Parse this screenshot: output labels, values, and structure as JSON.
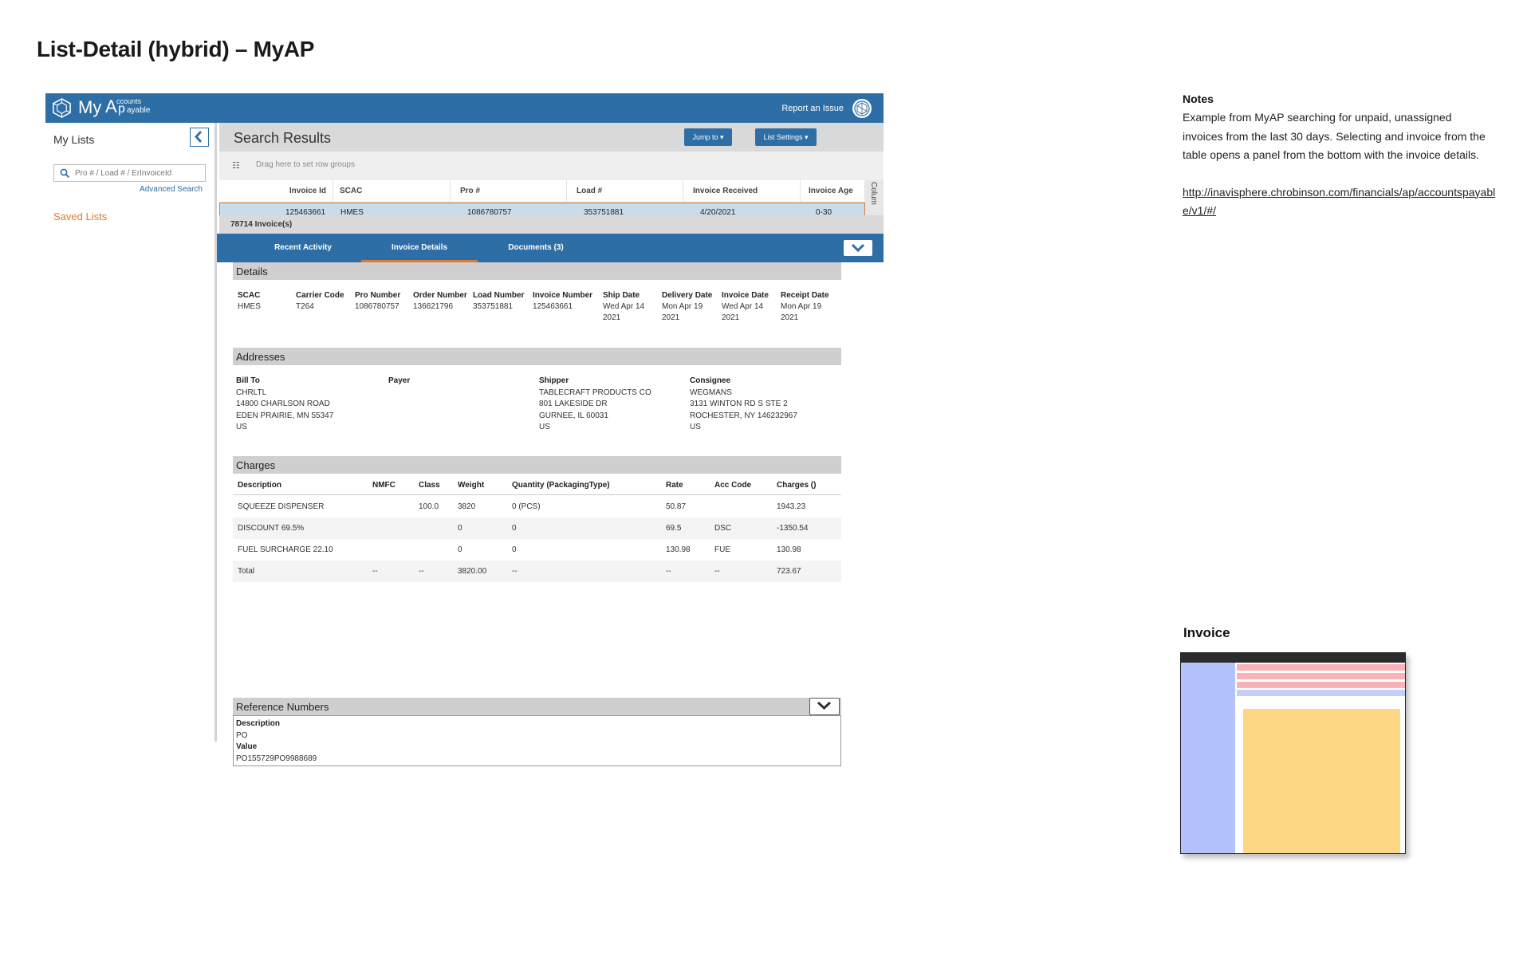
{
  "page": {
    "title": "List-Detail (hybrid) – MyAP"
  },
  "app": {
    "brand": "My",
    "brand_sub_a": "ccounts",
    "brand_sub_b": "ayable",
    "brand_letter_a": "A",
    "brand_letter_p": "p",
    "report_link": "Report an Issue",
    "icons": {
      "logo": "hexagon-logo-icon",
      "report": "globe-icon"
    },
    "colors": {
      "primary": "#2e6ea6",
      "accent": "#e07a2e"
    }
  },
  "sidebar": {
    "title": "My Lists",
    "search_placeholder": "Pro # / Load # / ErInvoiceId",
    "advanced_search": "Advanced Search",
    "saved_lists": "Saved Lists"
  },
  "results": {
    "title": "Search Results",
    "jump_to": "Jump to ▾",
    "list_settings": "List Settings ▾",
    "grouping_hint": "Drag here to set row groups",
    "columns": [
      "Invoice Id",
      "SCAC",
      "Pro #",
      "Load #",
      "Invoice Received",
      "Invoice Age"
    ],
    "side_label": "Colum",
    "row": [
      "125463661",
      "HMES",
      "1086780757",
      "353751881",
      "4/20/2021",
      "0-30"
    ],
    "count": "78714 Invoice(s)"
  },
  "tabs": [
    "Recent Activity",
    "Invoice Details",
    "Documents (3)"
  ],
  "details": {
    "heading": "Details",
    "fields": [
      {
        "label": "SCAC",
        "value": "HMES"
      },
      {
        "label": "Carrier Code",
        "value": "T264"
      },
      {
        "label": "Pro Number",
        "value": "1086780757"
      },
      {
        "label": "Order Number",
        "value": "136621796"
      },
      {
        "label": "Load Number",
        "value": "353751881"
      },
      {
        "label": "Invoice Number",
        "value": "125463661"
      },
      {
        "label": "Ship Date",
        "value": "Wed Apr 14",
        "value2": "2021"
      },
      {
        "label": "Delivery Date",
        "value": "Mon Apr 19",
        "value2": "2021"
      },
      {
        "label": "Invoice Date",
        "value": "Wed Apr 14",
        "value2": "2021"
      },
      {
        "label": "Receipt Date",
        "value": "Mon Apr 19",
        "value2": "2021"
      }
    ]
  },
  "addresses": {
    "heading": "Addresses",
    "bill_to": {
      "label": "Bill To",
      "lines": [
        "CHRLTL",
        "14800 CHARLSON ROAD",
        "EDEN PRAIRIE, MN 55347",
        "US"
      ]
    },
    "payer": {
      "label": "Payer"
    },
    "shipper": {
      "label": "Shipper",
      "lines": [
        "TABLECRAFT PRODUCTS CO",
        "801 LAKESIDE DR",
        "GURNEE, IL 60031",
        "US"
      ]
    },
    "consignee": {
      "label": "Consignee",
      "lines": [
        "WEGMANS",
        "3131 WINTON RD S STE 2",
        "ROCHESTER, NY 146232967",
        "US"
      ]
    }
  },
  "charges": {
    "heading": "Charges",
    "columns": [
      "Description",
      "NMFC",
      "Class",
      "Weight",
      "Quantity (PackagingType)",
      "Rate",
      "Acc Code",
      "Charges ()"
    ],
    "rows": [
      [
        "SQUEEZE DISPENSER",
        "",
        "100.0",
        "3820",
        "0 (PCS)",
        "50.87",
        "",
        "1943.23"
      ],
      [
        "DISCOUNT 69.5%",
        "",
        "",
        "0",
        "0",
        "69.5",
        "DSC",
        "-1350.54"
      ],
      [
        "FUEL SURCHARGE 22.10",
        "",
        "",
        "0",
        "0",
        "130.98",
        "FUE",
        "130.98"
      ],
      [
        "Total",
        "--",
        "--",
        "3820.00",
        "--",
        "--",
        "--",
        "723.67"
      ]
    ]
  },
  "references": {
    "heading": "Reference Numbers",
    "desc_label": "Description",
    "desc_value": "PO",
    "value_label": "Value",
    "value": "PO155729PO9988689"
  },
  "notes": {
    "heading": "Notes",
    "body": "Example from MyAP searching for unpaid, unassigned invoices from the last 30 days. Selecting and invoice from the table opens a panel from the bottom with the invoice details.",
    "url": "http://inavisphere.chrobinson.com/financials/ap/accountspayable/v1/#/"
  },
  "thumbnail": {
    "label": "Invoice",
    "colors": {
      "frame_top": "#2b2b2b",
      "sidebar": "#b3c2fb",
      "rows": "#f9b3b8",
      "panel": "#fdd784",
      "row_select": "#c6cffa"
    }
  }
}
